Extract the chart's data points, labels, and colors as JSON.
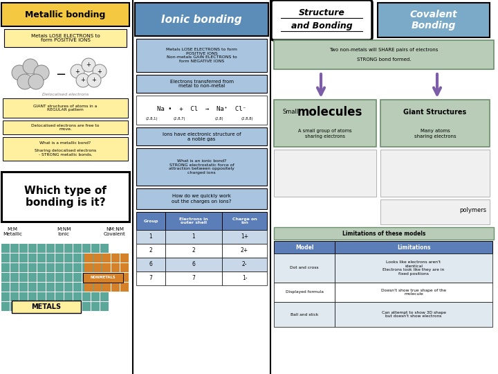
{
  "metallic_title": "Metallic bonding",
  "metallic_subtitle": "Metals LOSE ELECTRONS to\nform POSITIVE IONS",
  "metallic_notes": [
    "GIANT structures of atoms in a\nREGULAR pattern",
    "Delocalised electrons are free to\nmove.",
    "What is a metallic bond?\n\nSharing delocalised electrons\n- STRONG metallic bonds."
  ],
  "which_type_title": "Which type of\nbonding is it?",
  "labels_bottom_left": [
    "M:M\nMetallic",
    "M:NM\nIonic",
    "NM:NM\nCovalent"
  ],
  "ionic_title": "Ionic bonding",
  "ionic_box1": "Metals LOSE ELECTRONS to form\nPOSITIVE IONS\nNon-metals GAIN ELECTRONS to\nform NEGATIVE IONS",
  "ionic_box2": "Electrons transferred from\nmetal to non-metal",
  "ionic_box3": "Ions have electronic structure of\na noble gas",
  "ionic_box4": "What is an ionic bond?\nSTRONG electrostatic force of\nattraction between oppositely\ncharged ions",
  "ionic_box5": "How do we quickly work\nout the charges on ions?",
  "ionic_table_headers": [
    "Group",
    "Electrons in\nouter shell",
    "Charge on\nion"
  ],
  "ionic_table_rows": [
    [
      "1",
      "1",
      "1+"
    ],
    [
      "2",
      "2",
      "2+"
    ],
    [
      "6",
      "6",
      "2-"
    ],
    [
      "7",
      "7",
      "1-"
    ]
  ],
  "structure_title_line1": "Structure",
  "structure_title_line2": "and Bonding",
  "covalent_title": "Covalent\nBonding",
  "cov_box1": "Two non-metals will SHARE pairs of electrons\n\nSTRONG bond formed.",
  "small_mol_label_small": "Small",
  "small_mol_label_big": "molecules",
  "small_mol_sub": "A small group of atoms\nsharing electrons",
  "giant_struct_title": "Giant Structures",
  "giant_struct_sub": "Many atoms\nsharing electrons",
  "polymers_label": "polymers",
  "limitations_title": "Limitations of these models",
  "table2_headers": [
    "Model",
    "Limitations"
  ],
  "table2_rows": [
    [
      "Dot and cross",
      "Looks like electrons aren't\nidentical\nElectrons look like they are in\nfixed positions"
    ],
    [
      "Displayed formula",
      "Doesn't show true shape of the\nmolecule"
    ],
    [
      "Ball and stick",
      "Can attempt to show 3D shape\nbut doesn't show electrons"
    ]
  ],
  "color_yellow": "#F5C842",
  "color_yellow_light": "#FFF0A0",
  "color_blue_dark": "#5B8DB8",
  "color_blue_light": "#A8C4DE",
  "color_blue_mid": "#7BAAC8",
  "color_purple": "#7B5EA7",
  "color_green_dark": "#6B8E6B",
  "color_green_light": "#B8CCB8",
  "color_white": "#FFFFFF",
  "color_black": "#000000",
  "color_gray_light": "#E8E8E8",
  "color_table_header": "#5B7DB8",
  "color_table_row": "#C8D8E8",
  "color_teal": "#5BA89A",
  "color_orange": "#D4812A"
}
